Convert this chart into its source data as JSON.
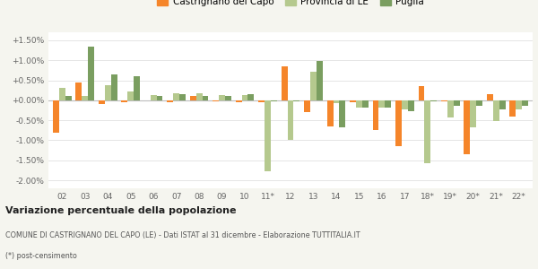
{
  "years": [
    "02",
    "03",
    "04",
    "05",
    "06",
    "07",
    "08",
    "09",
    "10",
    "11*",
    "12",
    "13",
    "14",
    "15",
    "16",
    "17",
    "18*",
    "19*",
    "20*",
    "21*",
    "22*"
  ],
  "castrignano": [
    -0.8,
    0.45,
    -0.1,
    -0.05,
    0.0,
    -0.05,
    0.1,
    -0.02,
    -0.04,
    -0.04,
    0.85,
    -0.3,
    -0.65,
    -0.05,
    -0.75,
    -1.15,
    0.35,
    -0.02,
    -1.35,
    0.15,
    -0.4
  ],
  "provincia": [
    0.32,
    0.1,
    0.38,
    0.22,
    0.13,
    0.18,
    0.18,
    0.13,
    0.13,
    -1.78,
    -1.0,
    0.72,
    -0.08,
    -0.18,
    -0.18,
    -0.22,
    -1.58,
    -0.42,
    -0.68,
    -0.52,
    -0.22
  ],
  "puglia": [
    0.1,
    1.35,
    0.65,
    0.6,
    0.1,
    0.15,
    0.1,
    0.1,
    0.15,
    -0.02,
    -0.02,
    0.98,
    -0.68,
    -0.18,
    -0.18,
    -0.28,
    -0.02,
    -0.13,
    -0.13,
    -0.22,
    -0.13
  ],
  "color_castrignano": "#f5852a",
  "color_provincia": "#b5c98e",
  "color_puglia": "#7a9e60",
  "legend_labels": [
    "Castrignano del Capo",
    "Provincia di LE",
    "Puglia"
  ],
  "title": "Variazione percentuale della popolazione",
  "subtitle": "COMUNE DI CASTRIGNANO DEL CAPO (LE) - Dati ISTAT al 31 dicembre - Elaborazione TUTTITALIA.IT",
  "footnote": "(*) post-censimento",
  "ylim": [
    -2.2,
    1.7
  ],
  "yticks": [
    -2.0,
    -1.5,
    -1.0,
    -0.5,
    0.0,
    0.5,
    1.0,
    1.5
  ],
  "background": "#f5f5ef",
  "plot_background": "#ffffff"
}
